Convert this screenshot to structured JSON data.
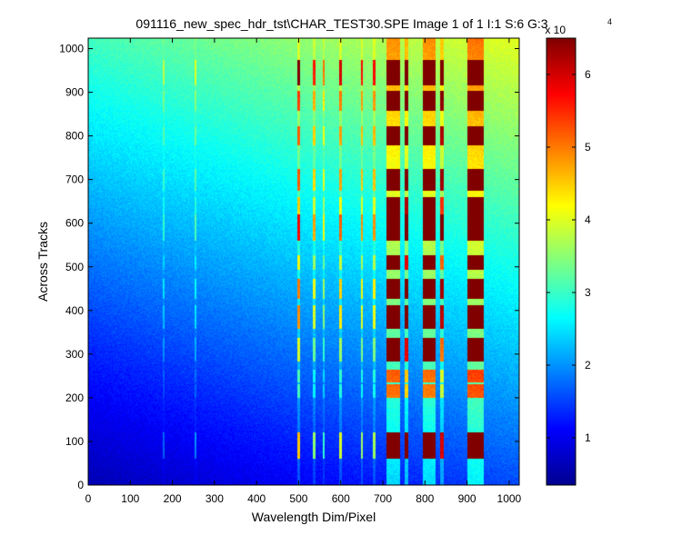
{
  "chart_data": {
    "type": "heatmap",
    "title": "091116_new_spec_hdr_tst\\CHAR_TEST30.SPE  Image 1 of 1  I:1  S:6  G:3",
    "xlabel": "Wavelength Dim/Pixel",
    "ylabel": "Across Tracks",
    "xlim": [
      0,
      1024
    ],
    "ylim": [
      0,
      1024
    ],
    "x_ticks": [
      0,
      100,
      200,
      300,
      400,
      500,
      600,
      700,
      800,
      900,
      1000
    ],
    "y_ticks": [
      0,
      100,
      200,
      300,
      400,
      500,
      600,
      700,
      800,
      900,
      1000
    ],
    "colorbar": {
      "colormap": "jet",
      "range": [
        0.35,
        6.5
      ],
      "ticks": [
        1,
        2,
        3,
        4,
        5,
        6
      ],
      "exponent_base": "x 10",
      "exponent_power": "4"
    },
    "grid": false,
    "spectral_lines": [
      {
        "x": 180,
        "width": 4,
        "strength": 0.1
      },
      {
        "x": 255,
        "width": 4,
        "strength": 0.12
      },
      {
        "x": 500,
        "width": 8,
        "strength": 0.45
      },
      {
        "x": 537,
        "width": 5,
        "strength": 0.3
      },
      {
        "x": 560,
        "width": 4,
        "strength": 0.22
      },
      {
        "x": 600,
        "width": 6,
        "strength": 0.35
      },
      {
        "x": 650,
        "width": 5,
        "strength": 0.3
      },
      {
        "x": 680,
        "width": 6,
        "strength": 0.3
      },
      {
        "x": 725,
        "width": 32,
        "strength": 1.0
      },
      {
        "x": 757,
        "width": 9,
        "strength": 0.8
      },
      {
        "x": 810,
        "width": 30,
        "strength": 0.95
      },
      {
        "x": 840,
        "width": 8,
        "strength": 0.6
      },
      {
        "x": 920,
        "width": 38,
        "strength": 1.0
      }
    ],
    "track_rows": [
      {
        "y": 90,
        "height": 60,
        "gain": 1.0
      },
      {
        "y": 215,
        "height": 30,
        "gain": 0.35
      },
      {
        "y": 250,
        "height": 30,
        "gain": 0.35
      },
      {
        "y": 310,
        "height": 55,
        "gain": 0.6
      },
      {
        "y": 385,
        "height": 55,
        "gain": 0.85
      },
      {
        "y": 450,
        "height": 45,
        "gain": 0.85
      },
      {
        "y": 510,
        "height": 35,
        "gain": 0.5
      },
      {
        "y": 590,
        "height": 60,
        "gain": 1.0
      },
      {
        "y": 640,
        "height": 40,
        "gain": 0.5
      },
      {
        "y": 700,
        "height": 50,
        "gain": 0.7
      },
      {
        "y": 800,
        "height": 45,
        "gain": 0.6
      },
      {
        "y": 880,
        "height": 45,
        "gain": 0.6
      },
      {
        "y": 945,
        "height": 60,
        "gain": 1.0
      }
    ]
  }
}
